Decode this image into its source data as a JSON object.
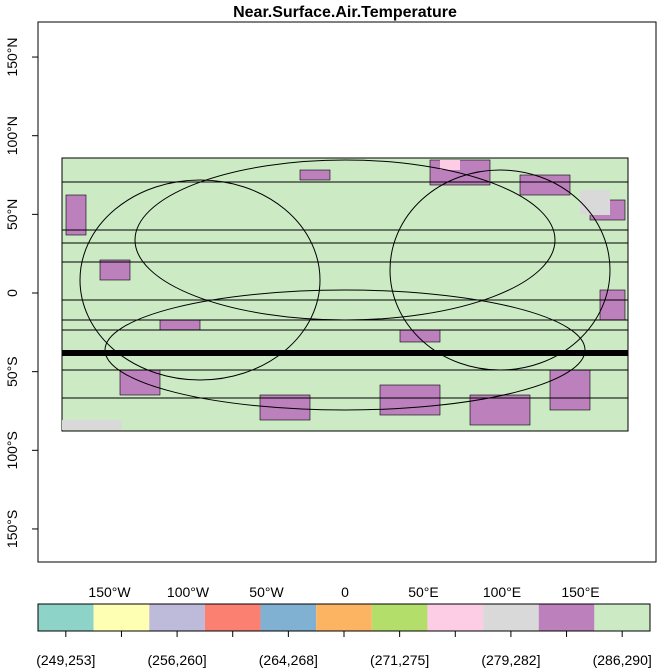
{
  "title": "Near.Surface.Air.Temperature",
  "x_axis": {
    "ticks": [
      {
        "value": -150,
        "label": "150°W"
      },
      {
        "value": -100,
        "label": "100°W"
      },
      {
        "value": -50,
        "label": "50°W"
      },
      0,
      {
        "value": 50,
        "label": "50°E"
      },
      {
        "value": 100,
        "label": "100°E"
      },
      {
        "value": 150,
        "label": "150°E"
      }
    ]
  },
  "y_axis": {
    "ticks": [
      {
        "value": -150,
        "label": "150°S"
      },
      {
        "value": -100,
        "label": "100°S"
      },
      {
        "value": -50,
        "label": "50°S"
      },
      0,
      {
        "value": 50,
        "label": "50°N"
      },
      {
        "value": 100,
        "label": "100°N"
      },
      {
        "value": 150,
        "label": "150°N"
      }
    ]
  },
  "legend": {
    "labels": [
      "(249,253]",
      null,
      "(256,260]",
      null,
      "(264,268]",
      null,
      "(271,275]",
      null,
      "(279,282]",
      null,
      "(286,290]"
    ],
    "colors": [
      "#8dd3c7",
      "#ffffb3",
      "#bebada",
      "#fb8072",
      "#80b1d3",
      "#fdb462",
      "#b3de69",
      "#fccde5",
      "#d9d9d9",
      "#bc80bd",
      "#ccebc5"
    ]
  }
}
